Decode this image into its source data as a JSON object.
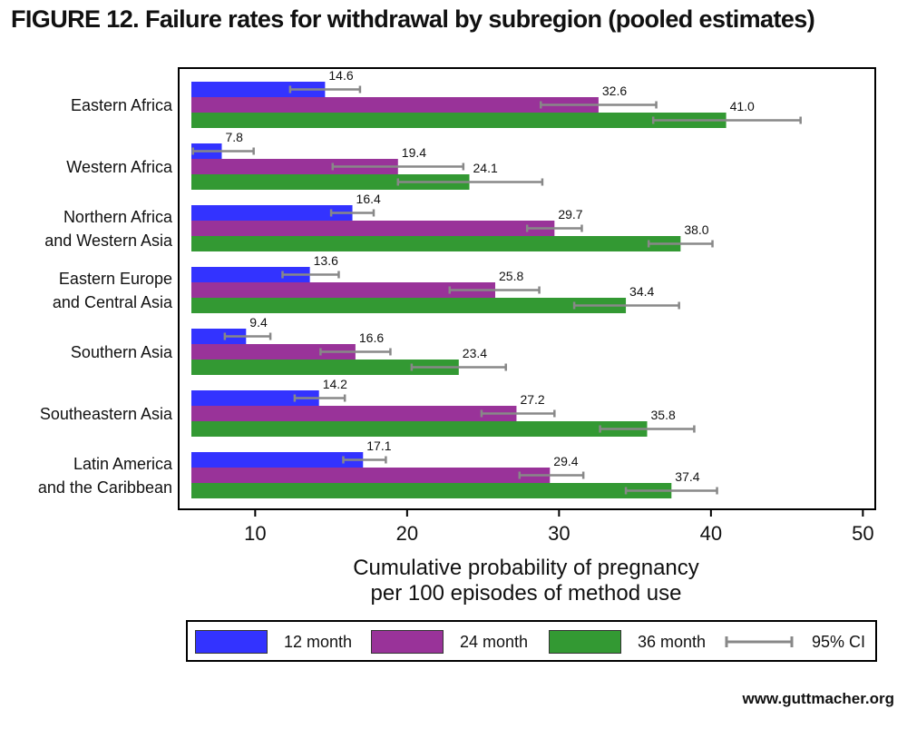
{
  "title": "FIGURE 12. Failure rates for withdrawal by subregion (pooled estimates)",
  "source": "www.guttmacher.org",
  "colors": {
    "s12": "#3333ff",
    "s24": "#993399",
    "s36": "#339933",
    "ci": "#888888"
  },
  "chart_data": {
    "type": "bar",
    "orientation": "horizontal",
    "categories": [
      "Eastern Africa",
      "Western Africa",
      "Northern Africa\nand Western Asia",
      "Eastern Europe\nand Central Asia",
      "Southern Asia",
      "Southeastern Asia",
      "Latin America\nand the Caribbean"
    ],
    "series": [
      {
        "name": "12 month",
        "values": [
          14.6,
          7.8,
          16.4,
          13.6,
          9.4,
          14.2,
          17.1
        ],
        "ci_low": [
          12.3,
          5.9,
          15.0,
          11.8,
          8.0,
          12.6,
          15.8
        ],
        "ci_high": [
          16.9,
          9.9,
          17.8,
          15.5,
          11.0,
          15.9,
          18.6
        ]
      },
      {
        "name": "24 month",
        "values": [
          32.6,
          19.4,
          29.7,
          25.8,
          16.6,
          27.2,
          29.4
        ],
        "ci_low": [
          28.8,
          15.1,
          27.9,
          22.8,
          14.3,
          24.9,
          27.4
        ],
        "ci_high": [
          36.4,
          23.7,
          31.5,
          28.7,
          18.9,
          29.7,
          31.6
        ]
      },
      {
        "name": "36 month",
        "values": [
          41.0,
          24.1,
          38.0,
          34.4,
          23.4,
          35.8,
          37.4
        ],
        "ci_low": [
          36.2,
          19.4,
          35.9,
          31.0,
          20.3,
          32.7,
          34.4
        ],
        "ci_high": [
          45.9,
          28.9,
          40.1,
          37.9,
          26.5,
          38.9,
          40.4
        ]
      }
    ],
    "value_labels": [
      [
        "14.6",
        "7.8",
        "16.4",
        "13.6",
        "9.4",
        "14.2",
        "17.1"
      ],
      [
        "32.6",
        "19.4",
        "29.7",
        "25.8",
        "16.6",
        "27.2",
        "29.4"
      ],
      [
        "41.0",
        "24.1",
        "38.0",
        "34.4",
        "23.4",
        "35.8",
        "37.4"
      ]
    ],
    "xlabel": "Cumulative probability of pregnancy\nper 100 episodes of method use",
    "xlim": [
      5.8,
      50
    ],
    "xticks": [
      "10",
      "20",
      "30",
      "40",
      "50"
    ],
    "grid": false,
    "legend": {
      "position": "bottom",
      "entries": [
        "12 month",
        "24 month",
        "36 month",
        "95% CI"
      ]
    }
  }
}
